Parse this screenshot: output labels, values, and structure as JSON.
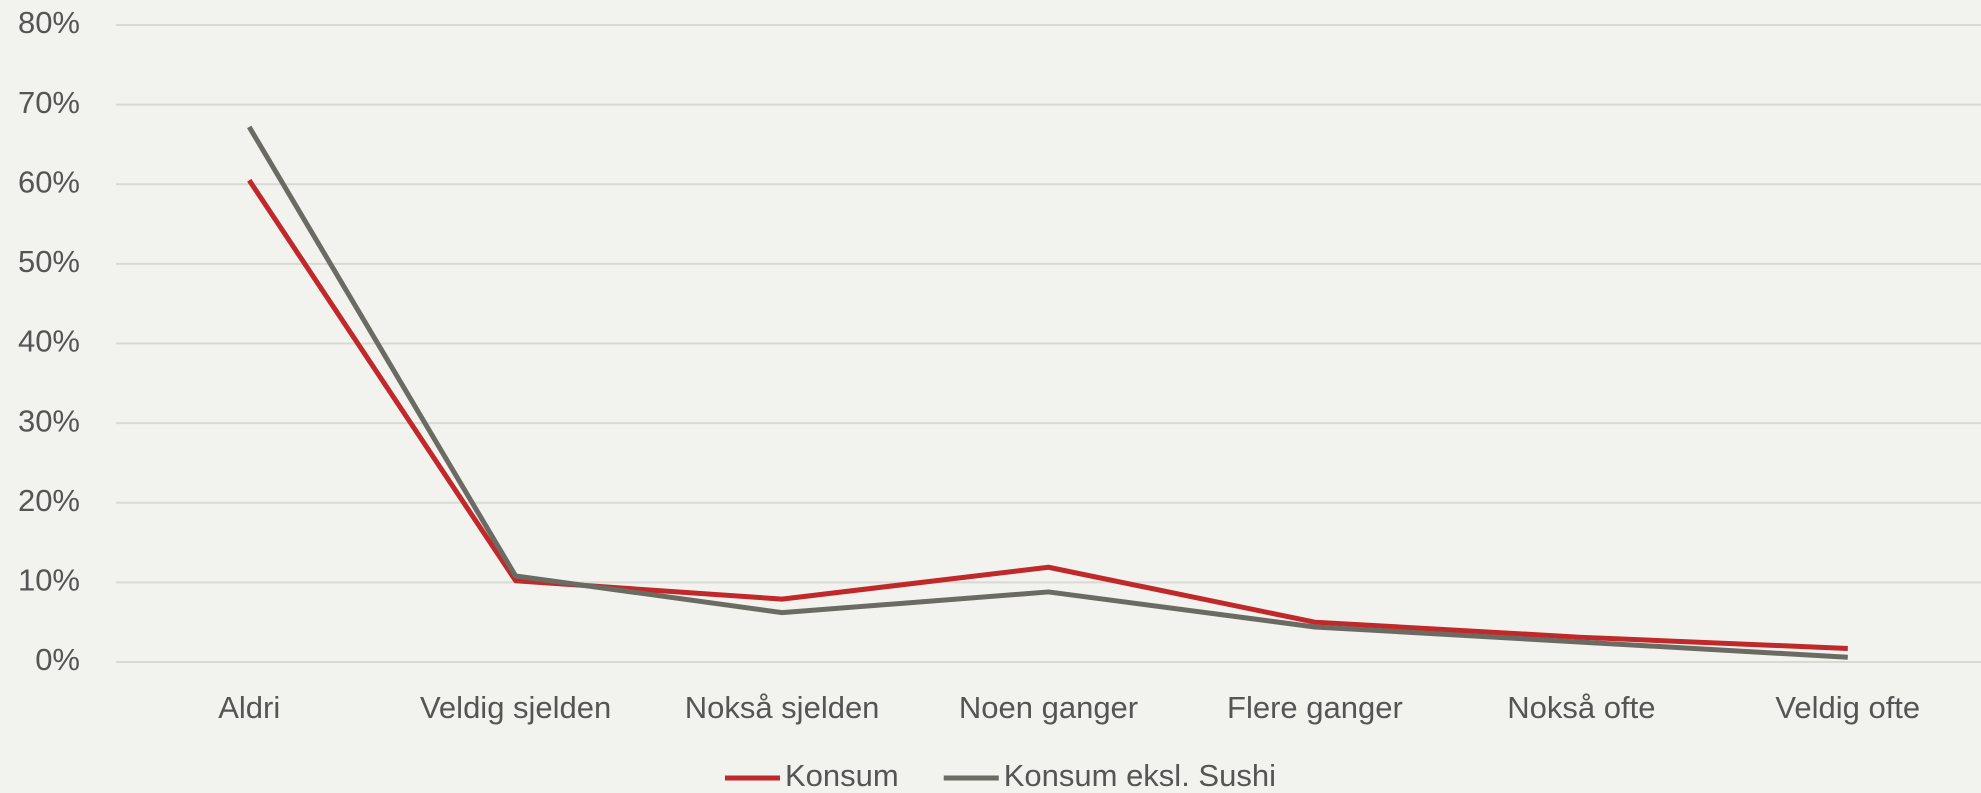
{
  "chart_data": {
    "type": "line",
    "categories": [
      "Aldri",
      "Veldig sjelden",
      "Nokså sjelden",
      "Noen ganger",
      "Flere ganger",
      "Nokså ofte",
      "Veldig ofte"
    ],
    "series": [
      {
        "name": "Konsum",
        "color": "#c0282a",
        "values": [
          60.5,
          10.2,
          7.9,
          11.9,
          5.0,
          3.1,
          1.7
        ]
      },
      {
        "name": "Konsum eksl. Sushi",
        "color": "#6b6b63",
        "values": [
          67.2,
          10.8,
          6.2,
          8.8,
          4.4,
          2.5,
          0.6
        ]
      }
    ],
    "ylim": [
      0,
      80
    ],
    "yticks": [
      {
        "value": 0,
        "label": "0%"
      },
      {
        "value": 10,
        "label": "10%"
      },
      {
        "value": 20,
        "label": "20%"
      },
      {
        "value": 30,
        "label": "30%"
      },
      {
        "value": 40,
        "label": "40%"
      },
      {
        "value": 50,
        "label": "50%"
      },
      {
        "value": 60,
        "label": "60%"
      },
      {
        "value": 70,
        "label": "70%"
      },
      {
        "value": 80,
        "label": "80%"
      }
    ],
    "grid": true,
    "legend": "bottom"
  }
}
